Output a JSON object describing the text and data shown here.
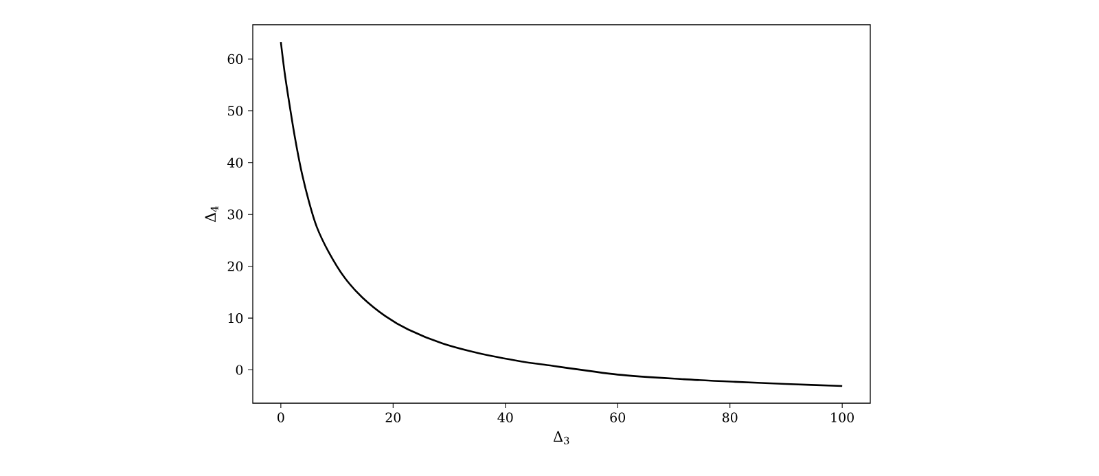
{
  "chart_data": {
    "type": "line",
    "xlabel": "Δ$_{3}$",
    "ylabel": "Δ$_{4}$",
    "x": [
      0,
      0.7,
      1.5,
      2.5,
      3.6,
      5,
      6.4,
      8.5,
      11.3,
      14.5,
      18.6,
      22.7,
      28.8,
      35,
      43,
      47,
      60,
      71.8,
      80.9,
      89.9,
      100
    ],
    "series": [
      {
        "color": "#000000",
        "values": [
          63.3,
          57.2,
          51.5,
          44.9,
          38.7,
          32.5,
          27.6,
          22.8,
          17.9,
          14,
          10.4,
          7.8,
          5.1,
          3.3,
          1.6,
          1.0,
          -0.9,
          -1.8,
          -2.3,
          -2.7,
          -3.1
        ]
      }
    ],
    "xlim": [
      -5,
      105
    ],
    "ylim": [
      -6.42,
      66.62
    ],
    "xticks": [
      0,
      20,
      40,
      60,
      80,
      100
    ],
    "yticks": [
      0,
      10,
      20,
      30,
      40,
      50,
      60
    ],
    "grid": false,
    "marker": "none",
    "line_style": "solid"
  }
}
